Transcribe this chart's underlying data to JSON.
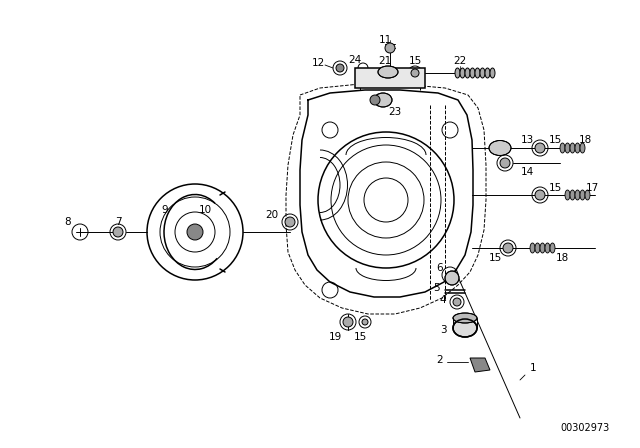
{
  "bg_color": "#ffffff",
  "fg_color": "#000000",
  "part_number": "00302973",
  "fig_w": 6.4,
  "fig_h": 4.48,
  "dpi": 100
}
